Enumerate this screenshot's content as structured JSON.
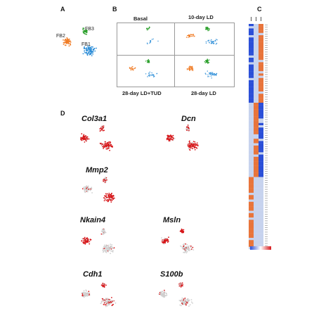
{
  "panels": {
    "a": {
      "letter": "A",
      "clusters": [
        {
          "label": "FB3",
          "color": "#2ca02c"
        },
        {
          "label": "FB2",
          "color": "#f07c26"
        },
        {
          "label": "FB1",
          "color": "#2f8fd8"
        }
      ]
    },
    "b": {
      "letter": "B",
      "conditions": [
        "Basal",
        "10-day LD",
        "28-day LD+TUD",
        "28-day LD"
      ]
    },
    "c": {
      "letter": "C"
    },
    "d": {
      "letter": "D",
      "genes": [
        "Col3a1",
        "Dcn",
        "Mmp2",
        "Nkain4",
        "Msln",
        "Cdh1",
        "S100b"
      ]
    }
  },
  "colors": {
    "fb1": "#2f8fd8",
    "fb2": "#f07c26",
    "fb3": "#2ca02c",
    "expr_high": "#d7191c",
    "expr_low": "#cfcfcf",
    "heat_low": "#2b4fd8",
    "heat_mid": "#c7d3ee",
    "heat_high": "#e8743b"
  }
}
